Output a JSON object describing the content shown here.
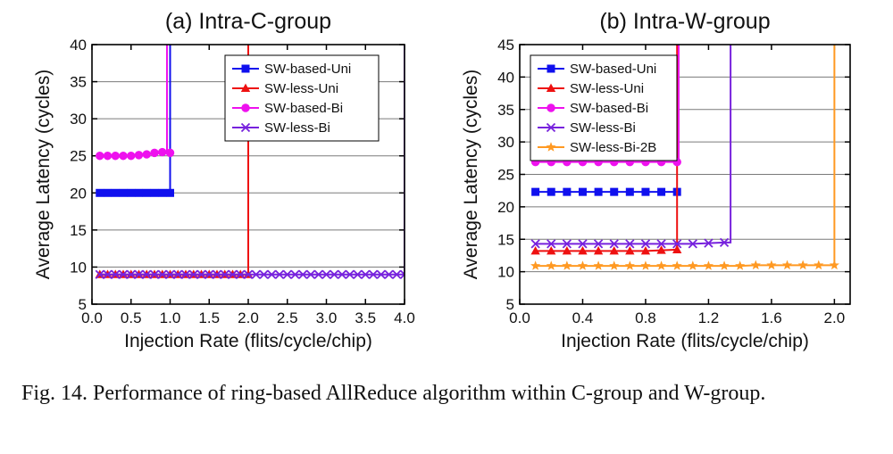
{
  "chart_data": [
    {
      "type": "line",
      "title": "(a) Intra-C-group",
      "xlabel": "Injection Rate (flits/cycle/chip)",
      "ylabel": "Average Latency (cycles)",
      "xlim": [
        0.0,
        4.0
      ],
      "ylim": [
        5,
        40
      ],
      "xticks": [
        "0.0",
        "0.5",
        "1.0",
        "1.5",
        "2.0",
        "2.5",
        "3.0",
        "3.5",
        "4.0"
      ],
      "yticks": [
        "5",
        "10",
        "15",
        "20",
        "25",
        "30",
        "35",
        "40"
      ],
      "grid": "horizontal",
      "legend_position": "top-right",
      "series": [
        {
          "name": "SW-based-Uni",
          "color": "#1010ee",
          "marker": "square",
          "x": [
            0.1,
            0.2,
            0.3,
            0.4,
            0.5,
            0.6,
            0.7,
            0.8,
            0.9,
            1.0
          ],
          "y": [
            20,
            20,
            20,
            20,
            20,
            20,
            20,
            20,
            20,
            20
          ],
          "saturation_x": 1.0
        },
        {
          "name": "SW-less-Uni",
          "color": "#ee1111",
          "marker": "triangle",
          "x": [
            0.1,
            0.2,
            0.3,
            0.4,
            0.5,
            0.6,
            0.7,
            0.8,
            0.9,
            1.0,
            1.1,
            1.2,
            1.3,
            1.4,
            1.5,
            1.6,
            1.7,
            1.8,
            1.9,
            2.0
          ],
          "y": [
            9,
            9,
            9,
            9,
            9,
            9,
            9,
            9,
            9,
            9,
            9,
            9,
            9,
            9,
            9,
            9,
            9,
            9,
            9,
            9
          ],
          "saturation_x": 2.0
        },
        {
          "name": "SW-based-Bi",
          "color": "#ee11ee",
          "marker": "circle",
          "x": [
            0.1,
            0.2,
            0.3,
            0.4,
            0.5,
            0.6,
            0.7,
            0.8,
            0.9,
            1.0
          ],
          "y": [
            25,
            25,
            25,
            25,
            25,
            25.1,
            25.2,
            25.4,
            25.5,
            25.4
          ],
          "saturation_x": 0.96
        },
        {
          "name": "SW-less-Bi",
          "color": "#7722dd",
          "marker": "x",
          "x": [
            0.1,
            0.2,
            0.3,
            0.4,
            0.5,
            0.6,
            0.7,
            0.8,
            0.9,
            1.0,
            1.1,
            1.2,
            1.3,
            1.4,
            1.5,
            1.6,
            1.7,
            1.8,
            1.9,
            2.0,
            2.1,
            2.2,
            2.3,
            2.4,
            2.5,
            2.6,
            2.7,
            2.8,
            2.9,
            3.0,
            3.1,
            3.2,
            3.3,
            3.4,
            3.5,
            3.6,
            3.7,
            3.8,
            3.9,
            4.0
          ],
          "y": [
            9,
            9,
            9,
            9,
            9,
            9,
            9,
            9,
            9,
            9,
            9,
            9,
            9,
            9,
            9,
            9,
            9,
            9,
            9,
            9,
            9,
            9,
            9,
            9,
            9,
            9,
            9,
            9,
            9,
            9,
            9,
            9,
            9,
            9,
            9,
            9,
            9,
            9,
            9,
            9
          ],
          "saturation_x": 4.0
        }
      ]
    },
    {
      "type": "line",
      "title": "(b) Intra-W-group",
      "xlabel": "Injection Rate (flits/cycle/chip)",
      "ylabel": "Average Latency (cycles)",
      "xlim": [
        0.0,
        2.1
      ],
      "ylim": [
        5,
        45
      ],
      "xticks": [
        "0.0",
        "0.4",
        "0.8",
        "1.2",
        "1.6",
        "2.0"
      ],
      "xtick_values": [
        0.0,
        0.4,
        0.8,
        1.2,
        1.6,
        2.0
      ],
      "yticks": [
        "5",
        "10",
        "15",
        "20",
        "25",
        "30",
        "35",
        "40",
        "45"
      ],
      "grid": "horizontal",
      "legend_position": "top-left",
      "series": [
        {
          "name": "SW-based-Uni",
          "color": "#1010ee",
          "marker": "square",
          "x": [
            0.1,
            0.2,
            0.3,
            0.4,
            0.5,
            0.6,
            0.7,
            0.8,
            0.9,
            1.0
          ],
          "y": [
            22.3,
            22.3,
            22.3,
            22.3,
            22.3,
            22.3,
            22.3,
            22.3,
            22.3,
            22.3
          ],
          "saturation_x": null
        },
        {
          "name": "SW-less-Uni",
          "color": "#ee1111",
          "marker": "triangle",
          "x": [
            0.1,
            0.2,
            0.3,
            0.4,
            0.5,
            0.6,
            0.7,
            0.8,
            0.9,
            1.0
          ],
          "y": [
            13.2,
            13.2,
            13.2,
            13.2,
            13.2,
            13.2,
            13.2,
            13.2,
            13.3,
            13.4
          ],
          "saturation_x": 1.0
        },
        {
          "name": "SW-based-Bi",
          "color": "#ee11ee",
          "marker": "circle",
          "x": [
            0.1,
            0.2,
            0.3,
            0.4,
            0.5,
            0.6,
            0.7,
            0.8,
            0.9,
            1.0
          ],
          "y": [
            26.9,
            26.9,
            26.9,
            26.9,
            26.9,
            26.9,
            26.9,
            26.9,
            26.9,
            26.9
          ],
          "saturation_x": 1.01
        },
        {
          "name": "SW-less-Bi",
          "color": "#7722dd",
          "marker": "x",
          "x": [
            0.1,
            0.2,
            0.3,
            0.4,
            0.5,
            0.6,
            0.7,
            0.8,
            0.9,
            1.0,
            1.1,
            1.2,
            1.3
          ],
          "y": [
            14.3,
            14.3,
            14.3,
            14.3,
            14.3,
            14.3,
            14.3,
            14.3,
            14.3,
            14.3,
            14.3,
            14.4,
            14.5
          ],
          "saturation_x": 1.34
        },
        {
          "name": "SW-less-Bi-2B",
          "color": "#ff9922",
          "marker": "star",
          "x": [
            0.1,
            0.2,
            0.3,
            0.4,
            0.5,
            0.6,
            0.7,
            0.8,
            0.9,
            1.0,
            1.1,
            1.2,
            1.3,
            1.4,
            1.5,
            1.6,
            1.7,
            1.8,
            1.9,
            2.0
          ],
          "y": [
            10.9,
            10.9,
            10.9,
            10.9,
            10.9,
            10.9,
            10.9,
            10.9,
            10.9,
            10.9,
            10.9,
            10.9,
            10.9,
            10.9,
            11,
            11,
            11,
            11,
            11,
            11
          ],
          "saturation_x": 2.0
        }
      ]
    }
  ],
  "caption": "Fig. 14.  Performance of ring-based AllReduce algorithm within C-group and W-group."
}
